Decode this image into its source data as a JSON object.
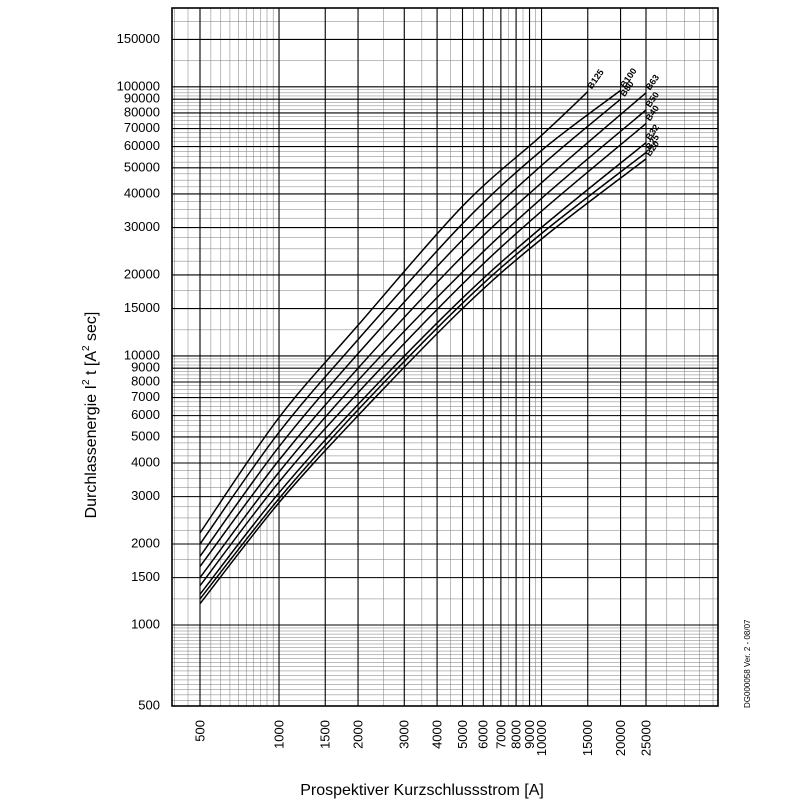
{
  "chart_data": {
    "type": "line",
    "xscale": "log",
    "yscale": "log",
    "xlim": [
      500,
      25000
    ],
    "ylim": [
      500,
      200000
    ],
    "grid": true,
    "xlabel": "Prospektiver Kurzschlussstrom [A]",
    "ylabel_main": "Durchlassenergie I",
    "ylabel_sup1": "2",
    "ylabel_mid": " t [A",
    "ylabel_sup2": "2",
    "ylabel_end": " sec]",
    "reference": "DG000058  Ver. 2 - 08/07",
    "x_ticks": [
      {
        "value": 500,
        "label": "500"
      },
      {
        "value": 1000,
        "label": "1000"
      },
      {
        "value": 1500,
        "label": "1500"
      },
      {
        "value": 2000,
        "label": "2000"
      },
      {
        "value": 3000,
        "label": "3000"
      },
      {
        "value": 4000,
        "label": "4000"
      },
      {
        "value": 5000,
        "label": "5000"
      },
      {
        "value": 6000,
        "label": "6000"
      },
      {
        "value": 7000,
        "label": "7000"
      },
      {
        "value": 8000,
        "label": "8000"
      },
      {
        "value": 9000,
        "label": "9000"
      },
      {
        "value": 10000,
        "label": "10000"
      },
      {
        "value": 15000,
        "label": "15000"
      },
      {
        "value": 20000,
        "label": "20000"
      },
      {
        "value": 25000,
        "label": "25000"
      }
    ],
    "y_ticks": [
      {
        "value": 500,
        "label": "500"
      },
      {
        "value": 1000,
        "label": "1000"
      },
      {
        "value": 1500,
        "label": "1500"
      },
      {
        "value": 2000,
        "label": "2000"
      },
      {
        "value": 3000,
        "label": "3000"
      },
      {
        "value": 4000,
        "label": "4000"
      },
      {
        "value": 5000,
        "label": "5000"
      },
      {
        "value": 6000,
        "label": "6000"
      },
      {
        "value": 7000,
        "label": "7000"
      },
      {
        "value": 8000,
        "label": "8000"
      },
      {
        "value": 9000,
        "label": "9000"
      },
      {
        "value": 10000,
        "label": "10000"
      },
      {
        "value": 15000,
        "label": "15000"
      },
      {
        "value": 20000,
        "label": "20000"
      },
      {
        "value": 30000,
        "label": "30000"
      },
      {
        "value": 40000,
        "label": "40000"
      },
      {
        "value": 50000,
        "label": "50000"
      },
      {
        "value": 60000,
        "label": "60000"
      },
      {
        "value": 70000,
        "label": "70000"
      },
      {
        "value": 80000,
        "label": "80000"
      },
      {
        "value": 90000,
        "label": "90000"
      },
      {
        "value": 100000,
        "label": "100000"
      },
      {
        "value": 150000,
        "label": "150000"
      }
    ],
    "series": [
      {
        "name": "B125",
        "points": [
          [
            500,
            2200
          ],
          [
            1000,
            5900
          ],
          [
            2000,
            13000
          ],
          [
            5000,
            36000
          ],
          [
            10000,
            66000
          ],
          [
            15000,
            96000
          ]
        ]
      },
      {
        "name": "B100",
        "points": [
          [
            500,
            2000
          ],
          [
            1000,
            5200
          ],
          [
            2000,
            11500
          ],
          [
            5000,
            31000
          ],
          [
            10000,
            58000
          ],
          [
            20000,
            97000
          ]
        ]
      },
      {
        "name": "B80",
        "points": [
          [
            500,
            1800
          ],
          [
            1000,
            4600
          ],
          [
            2000,
            10200
          ],
          [
            5000,
            27000
          ],
          [
            10000,
            51000
          ],
          [
            20000,
            90000
          ]
        ]
      },
      {
        "name": "B63",
        "points": [
          [
            500,
            1650
          ],
          [
            1000,
            4100
          ],
          [
            2000,
            9000
          ],
          [
            5000,
            23500
          ],
          [
            10000,
            44000
          ],
          [
            25000,
            95000
          ]
        ]
      },
      {
        "name": "B50",
        "points": [
          [
            500,
            1500
          ],
          [
            1000,
            3700
          ],
          [
            2000,
            8100
          ],
          [
            5000,
            20500
          ],
          [
            10000,
            38500
          ],
          [
            25000,
            82000
          ]
        ]
      },
      {
        "name": "B40",
        "points": [
          [
            500,
            1400
          ],
          [
            1000,
            3400
          ],
          [
            2000,
            7300
          ],
          [
            5000,
            18500
          ],
          [
            10000,
            34500
          ],
          [
            25000,
            73000
          ]
        ]
      },
      {
        "name": "B32",
        "points": [
          [
            500,
            1300
          ],
          [
            1000,
            3100
          ],
          [
            2000,
            6600
          ],
          [
            5000,
            16400
          ],
          [
            10000,
            30000
          ],
          [
            25000,
            62000
          ]
        ]
      },
      {
        "name": "B25",
        "points": [
          [
            500,
            1250
          ],
          [
            1000,
            2950
          ],
          [
            2000,
            6300
          ],
          [
            5000,
            15700
          ],
          [
            10000,
            28500
          ],
          [
            25000,
            57000
          ]
        ]
      },
      {
        "name": "B20",
        "points": [
          [
            500,
            1200
          ],
          [
            1000,
            2850
          ],
          [
            2000,
            6000
          ],
          [
            5000,
            15000
          ],
          [
            10000,
            27200
          ],
          [
            25000,
            54000
          ]
        ]
      }
    ]
  }
}
